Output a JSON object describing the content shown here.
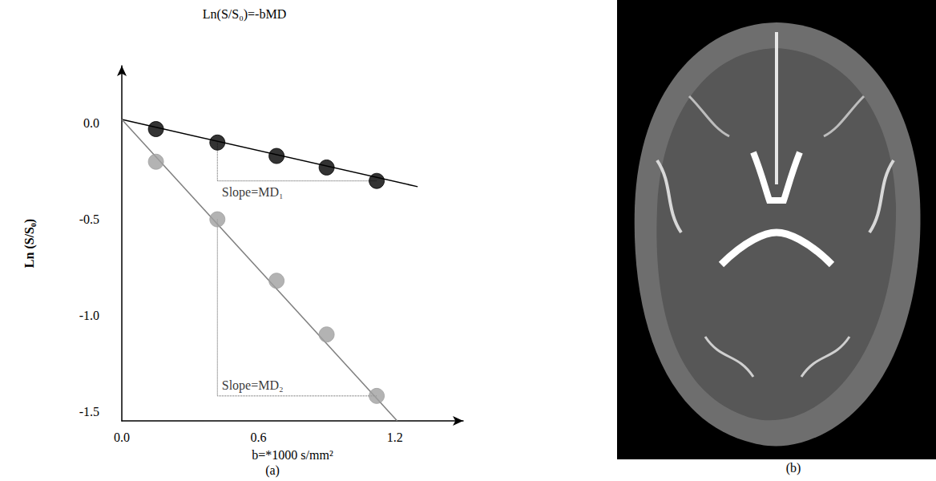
{
  "chart_data": {
    "type": "scatter",
    "marker": "circle",
    "title": "Ln(S/S₀)=-bMD",
    "x_label": "b=*1000 s/mm²",
    "y_label": "Ln (S/S₀)",
    "xlim": [
      0,
      1.5
    ],
    "ylim": [
      -1.55,
      0.3
    ],
    "xticks": [
      {
        "value": 0,
        "label": "0.0"
      },
      0.6,
      1.2
    ],
    "yticks": [
      {
        "value": 0,
        "label": "0.0"
      },
      -0.5,
      {
        "value": -1,
        "label": "-1.0"
      },
      -1.5
    ],
    "grid": false,
    "x": [
      0.15,
      0.42,
      0.68,
      0.9,
      1.12
    ],
    "series": [
      {
        "color": "#000000",
        "values": [
          -0.03,
          -0.1,
          -0.17,
          -0.23,
          -0.3
        ],
        "fit": {
          "x": [
            0,
            1.3
          ],
          "y": [
            0.02,
            -0.33
          ]
        },
        "annotation": "Slope=MD₁"
      },
      {
        "color": "#a0a0a0",
        "values": [
          -0.2,
          -0.5,
          -0.82,
          -1.1,
          -1.42
        ],
        "fit": {
          "x": [
            0,
            1.21
          ],
          "y": [
            0.02,
            -1.55
          ]
        },
        "annotation": "Slope=MD₂"
      }
    ],
    "panel_label": "(a)"
  },
  "image_panel": {
    "label": "(b)"
  }
}
